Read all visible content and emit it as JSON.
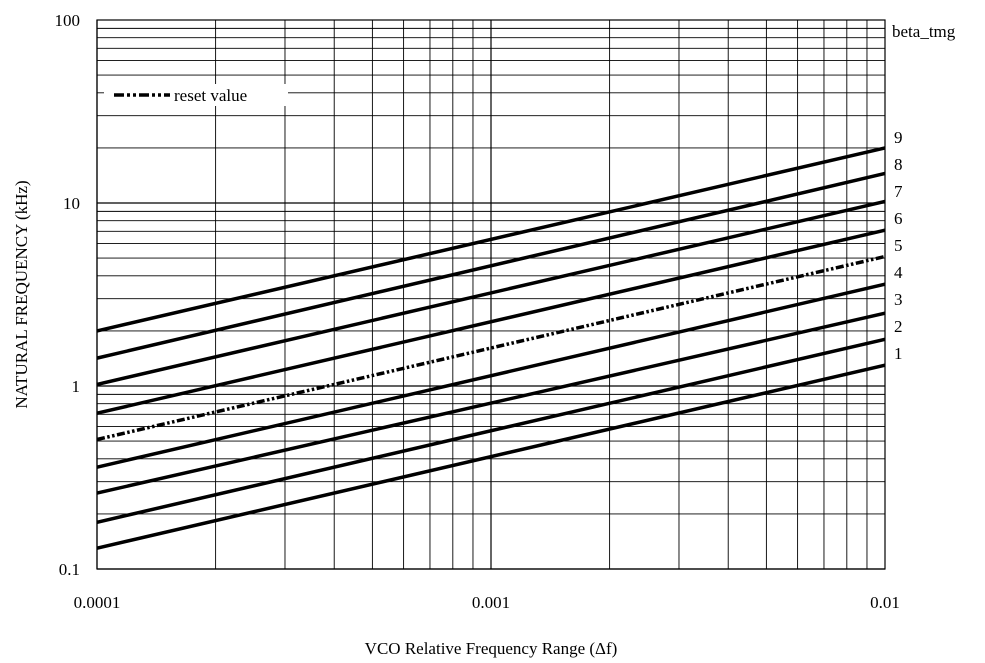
{
  "chart_data": {
    "type": "line",
    "x_scale": "log",
    "y_scale": "log",
    "xlim": [
      0.0001,
      0.01
    ],
    "ylim": [
      0.1,
      100
    ],
    "xlabel": "VCO Relative Frequency Range (Δf)",
    "ylabel": "NATURAL FREQUENCY (kHz)",
    "x_tick_labels": [
      {
        "value": 0.0001,
        "label": "0.0001"
      },
      {
        "value": 0.001,
        "label": "0.001"
      },
      {
        "value": 0.01,
        "label": "0.01"
      }
    ],
    "y_tick_labels": [
      {
        "value": 0.1,
        "label": "0.1"
      },
      {
        "value": 1,
        "label": "1"
      },
      {
        "value": 10,
        "label": "10"
      },
      {
        "value": 100,
        "label": "100"
      }
    ],
    "grid": true,
    "legend": {
      "placement": "top-left",
      "entries": [
        {
          "label": "reset value",
          "style": "dash-dot"
        }
      ]
    },
    "series_label_header": "beta_tmg",
    "series": [
      {
        "name": "1",
        "style": "solid",
        "x": [
          0.0001,
          0.01
        ],
        "y": [
          0.13,
          1.3
        ]
      },
      {
        "name": "2",
        "style": "solid",
        "x": [
          0.0001,
          0.01
        ],
        "y": [
          0.18,
          1.8
        ]
      },
      {
        "name": "3",
        "style": "solid",
        "x": [
          0.0001,
          0.01
        ],
        "y": [
          0.26,
          2.5
        ]
      },
      {
        "name": "4",
        "style": "solid",
        "x": [
          0.0001,
          0.01
        ],
        "y": [
          0.36,
          3.6
        ]
      },
      {
        "name": "5",
        "style": "dash-dot",
        "x": [
          0.0001,
          0.01
        ],
        "y": [
          0.51,
          5.1
        ]
      },
      {
        "name": "6",
        "style": "solid",
        "x": [
          0.0001,
          0.01
        ],
        "y": [
          0.71,
          7.1
        ]
      },
      {
        "name": "7",
        "style": "solid",
        "x": [
          0.0001,
          0.01
        ],
        "y": [
          1.02,
          10.2
        ]
      },
      {
        "name": "8",
        "style": "solid",
        "x": [
          0.0001,
          0.01
        ],
        "y": [
          1.42,
          14.5
        ]
      },
      {
        "name": "9",
        "style": "solid",
        "x": [
          0.0001,
          0.01
        ],
        "y": [
          2.0,
          20.0
        ]
      }
    ]
  }
}
